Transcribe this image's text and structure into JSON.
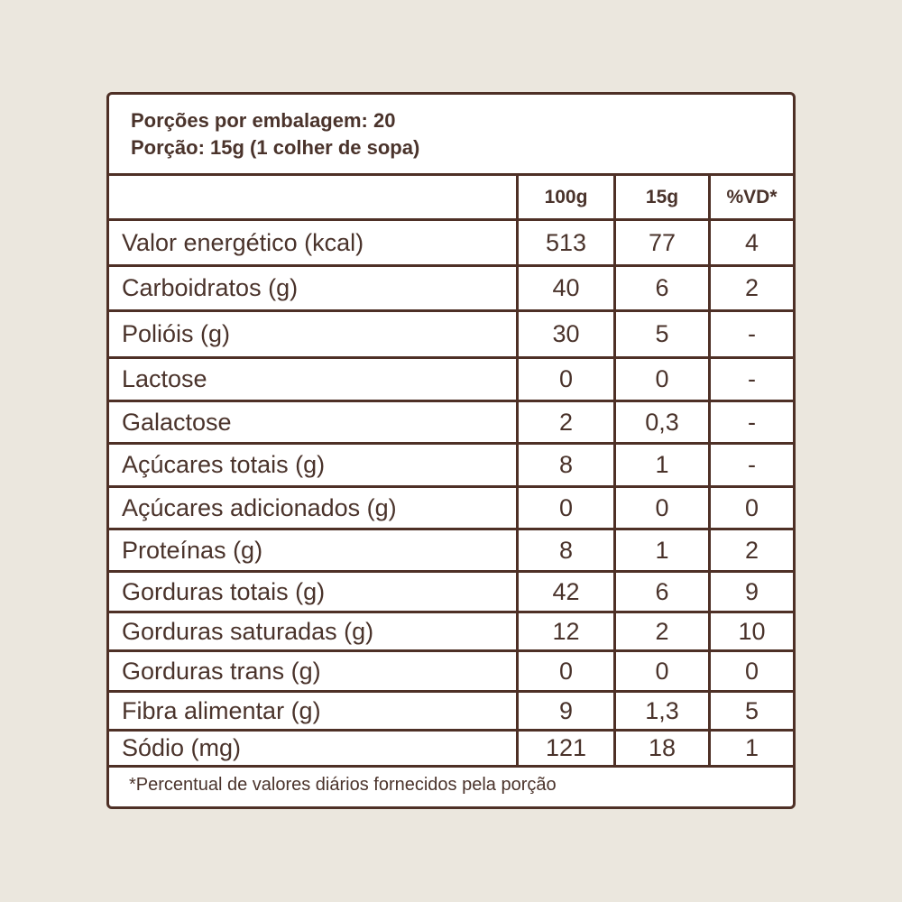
{
  "header": {
    "servings_per_package": "Porções por embalagem: 20",
    "serving_size": "Porção: 15g (1 colher de sopa)"
  },
  "columns": [
    "",
    "100g",
    "15g",
    "%VD*"
  ],
  "rows": [
    {
      "name": "Valor energético (kcal)",
      "per100g": "513",
      "per15g": "77",
      "vd": "4"
    },
    {
      "name": "Carboidratos (g)",
      "per100g": "40",
      "per15g": "6",
      "vd": "2"
    },
    {
      "name": "Polióis (g)",
      "per100g": "30",
      "per15g": "5",
      "vd": "-"
    },
    {
      "name": "Lactose",
      "per100g": "0",
      "per15g": "0",
      "vd": "-"
    },
    {
      "name": "Galactose",
      "per100g": "2",
      "per15g": "0,3",
      "vd": "-"
    },
    {
      "name": "Açúcares totais (g)",
      "per100g": "8",
      "per15g": "1",
      "vd": "-"
    },
    {
      "name": "Açúcares adicionados (g)",
      "per100g": "0",
      "per15g": "0",
      "vd": "0"
    },
    {
      "name": "Proteínas (g)",
      "per100g": "8",
      "per15g": "1",
      "vd": "2"
    },
    {
      "name": "Gorduras totais (g)",
      "per100g": "42",
      "per15g": "6",
      "vd": "9"
    },
    {
      "name": "Gorduras saturadas (g)",
      "per100g": "12",
      "per15g": "2",
      "vd": "10"
    },
    {
      "name": "Gorduras trans (g)",
      "per100g": "0",
      "per15g": "0",
      "vd": "0"
    },
    {
      "name": "Fibra alimentar (g)",
      "per100g": "9",
      "per15g": "1,3",
      "vd": "5"
    },
    {
      "name": "Sódio (mg)",
      "per100g": "121",
      "per15g": "18",
      "vd": "1"
    }
  ],
  "footnote": "*Percentual de valores diários fornecidos pela porção",
  "colors": {
    "border": "#4e3026",
    "text": "#4a332b",
    "background": "#ebe7de"
  }
}
